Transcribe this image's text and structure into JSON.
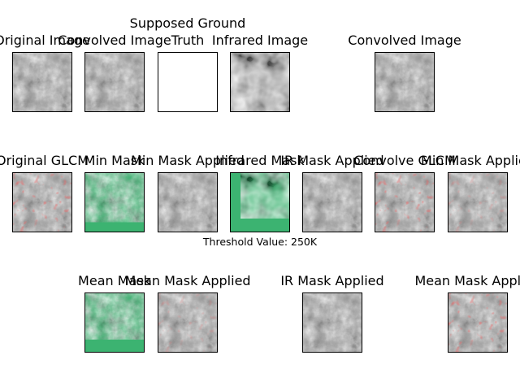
{
  "figure": {
    "threshold_label": "Threshold Value: 250K",
    "colors": {
      "mask_fill": "#3cb371",
      "glcm_highlight": "#e02020",
      "axes_border": "#000000"
    },
    "row1": [
      {
        "title": "Original Image",
        "kind": "gray"
      },
      {
        "title": "Convolved Image",
        "kind": "gray"
      },
      {
        "title_line1": "Supposed Ground",
        "title_line2": "Truth",
        "kind": "blank"
      },
      {
        "title": "Infrared Image",
        "kind": "infrared"
      },
      {
        "title": "Convolved Image",
        "kind": "gray"
      }
    ],
    "row2": [
      {
        "title": "Original GLCM",
        "kind": "glcm"
      },
      {
        "title": "Min Mask",
        "kind": "mask"
      },
      {
        "title": "Min Mask Applied",
        "kind": "gray"
      },
      {
        "title": "Infrared Mask",
        "kind": "ir-mask"
      },
      {
        "title": "IR Mask Applied",
        "kind": "gray"
      },
      {
        "title": "Convolve GLCM",
        "kind": "glcm"
      },
      {
        "title": "Min Mask Applied",
        "kind": "glcm-light"
      }
    ],
    "row3": [
      {
        "title": "Mean Mask",
        "kind": "mask"
      },
      {
        "title": "Mean Mask Applied",
        "kind": "glcm-light"
      },
      {
        "title": "IR Mask Applied",
        "kind": "gray"
      },
      {
        "title": "Mean Mask Applied",
        "kind": "glcm"
      }
    ]
  }
}
